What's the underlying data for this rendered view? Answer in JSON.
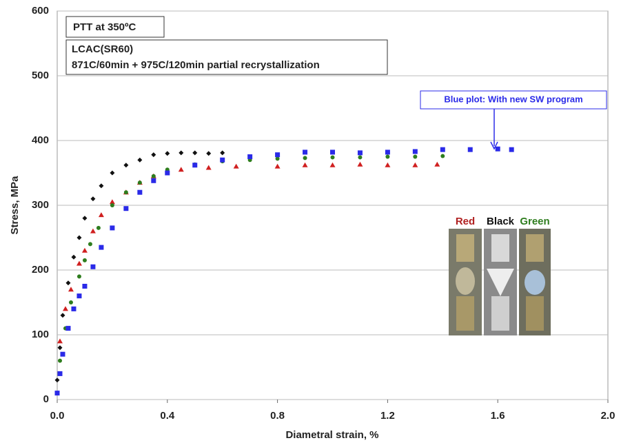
{
  "chart_data": {
    "type": "scatter",
    "x_label": "Diametral strain, %",
    "y_label": "Stress, MPa",
    "xlim": [
      0,
      2
    ],
    "ylim": [
      0,
      600
    ],
    "xticks": [
      {
        "value": 0,
        "label": "0.0"
      },
      0.4,
      0.8,
      1.2,
      1.6,
      {
        "value": 2,
        "label": "2.0"
      }
    ],
    "yticks": [
      0,
      100,
      200,
      300,
      400,
      500,
      600
    ],
    "grid": true,
    "series": [
      {
        "color": "#d02020",
        "marker": "triangle",
        "x": [
          0.01,
          0.03,
          0.05,
          0.08,
          0.1,
          0.13,
          0.16,
          0.2,
          0.25,
          0.3,
          0.35,
          0.45,
          0.55,
          0.65,
          0.8,
          0.9,
          1.0,
          1.1,
          1.2,
          1.3,
          1.38
        ],
        "values": [
          90,
          140,
          170,
          210,
          230,
          260,
          285,
          305,
          320,
          335,
          345,
          355,
          358,
          360,
          360,
          362,
          362,
          363,
          362,
          362,
          363
        ]
      },
      {
        "color": "#111111",
        "marker": "diamond",
        "x": [
          0.0,
          0.01,
          0.02,
          0.04,
          0.06,
          0.08,
          0.1,
          0.13,
          0.16,
          0.2,
          0.25,
          0.3,
          0.35,
          0.4,
          0.45,
          0.5,
          0.55,
          0.6
        ],
        "values": [
          30,
          80,
          130,
          180,
          220,
          250,
          280,
          310,
          330,
          350,
          362,
          370,
          378,
          380,
          381,
          381,
          380,
          381
        ]
      },
      {
        "color": "#2e7d1e",
        "marker": "circle",
        "x": [
          0.01,
          0.03,
          0.05,
          0.08,
          0.1,
          0.12,
          0.15,
          0.2,
          0.25,
          0.3,
          0.35,
          0.4,
          0.5,
          0.6,
          0.7,
          0.8,
          0.9,
          1.0,
          1.1,
          1.2,
          1.3,
          1.4
        ],
        "values": [
          60,
          110,
          150,
          190,
          215,
          240,
          265,
          300,
          320,
          335,
          345,
          355,
          363,
          368,
          370,
          372,
          373,
          374,
          374,
          375,
          375,
          376
        ]
      },
      {
        "color": "#2a2ae8",
        "marker": "square",
        "x": [
          0.0,
          0.01,
          0.02,
          0.04,
          0.06,
          0.08,
          0.1,
          0.13,
          0.16,
          0.2,
          0.25,
          0.3,
          0.35,
          0.4,
          0.5,
          0.6,
          0.7,
          0.8,
          0.9,
          1.0,
          1.1,
          1.2,
          1.3,
          1.4,
          1.5,
          1.6,
          1.65
        ],
        "values": [
          10,
          40,
          70,
          110,
          140,
          160,
          175,
          205,
          235,
          265,
          295,
          320,
          338,
          350,
          362,
          370,
          375,
          378,
          382,
          382,
          381,
          382,
          383,
          386,
          386,
          387,
          386
        ]
      }
    ],
    "notes": {
      "test": "PTT at 350ºC",
      "material": "LCAC(SR60)",
      "treatment": "871C/60min + 975C/120min partial recrystallization",
      "blue_note": "Blue plot: With new SW program",
      "photo_labels": [
        "Red",
        "Black",
        "Green"
      ]
    }
  }
}
